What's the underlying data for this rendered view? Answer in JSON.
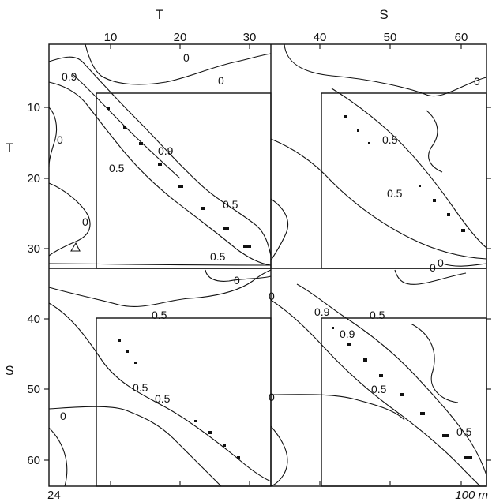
{
  "header": {
    "top_T": "T",
    "top_S": "S"
  },
  "side": {
    "left_T": "T",
    "left_S": "S"
  },
  "axes": {
    "top_ticks": [
      "10",
      "20",
      "30",
      "40",
      "50",
      "60"
    ],
    "left_ticks": [
      "10",
      "20",
      "30",
      "40",
      "50",
      "60"
    ]
  },
  "footer": {
    "left_depth": "24",
    "right_depth": "100 m"
  },
  "contour_labels": [
    "0.9",
    "0",
    "0",
    "0",
    "0.9",
    "0.5",
    "0.5",
    "0.5",
    "0",
    "0.5",
    "0",
    "0.5",
    "0.5",
    "0",
    "0.5",
    "0.5",
    "0",
    "0",
    "0",
    "0.9",
    "0.9",
    "0.5",
    "0.5",
    "0.5",
    "0",
    "0"
  ],
  "colors": {
    "ink": "#111111",
    "background": "#ffffff"
  }
}
